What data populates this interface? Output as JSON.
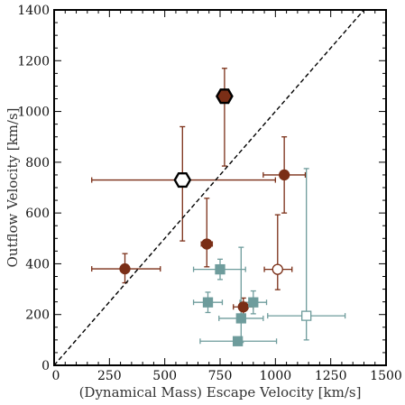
{
  "chart_data": {
    "type": "scatter",
    "title": "",
    "xlabel": "(Dynamical Mass) Escape Velocity [km/s]",
    "ylabel": "Outflow Velocity [km/s]",
    "xlim": [
      0,
      1500
    ],
    "ylim": [
      0,
      1400
    ],
    "xticks": [
      0,
      250,
      500,
      750,
      1000,
      1250,
      1500
    ],
    "yticks": [
      0,
      200,
      400,
      600,
      800,
      1000,
      1200,
      1400
    ],
    "xtick_labels": [
      "0",
      "250",
      "500",
      "750",
      "1000",
      "1250",
      "1500"
    ],
    "ytick_labels": [
      "0",
      "200",
      "400",
      "600",
      "800",
      "1000",
      "1200",
      "1400"
    ],
    "grid": false,
    "reference_line": {
      "style": "dashed",
      "color": "#000000",
      "points": [
        [
          0,
          0
        ],
        [
          1400,
          1400
        ]
      ]
    },
    "colors": {
      "brown": "#7a2e16",
      "teal": "#6e9c9c"
    },
    "series": [
      {
        "marker": "circle",
        "color": "#7a2e16",
        "points": [
          {
            "x": 320,
            "y": 380,
            "xerr": [
              150,
              160
            ],
            "yerr": [
              55,
              60
            ],
            "filled": true
          },
          {
            "x": 690,
            "y": 478,
            "xerr": [
              25,
              25
            ],
            "yerr": [
              90,
              180
            ],
            "filled": true
          },
          {
            "x": 855,
            "y": 230,
            "xerr": [
              45,
              45
            ],
            "yerr": [
              35,
              35
            ],
            "filled": true
          },
          {
            "x": 1040,
            "y": 750,
            "xerr": [
              95,
              95
            ],
            "yerr": [
              150,
              150
            ],
            "filled": true
          },
          {
            "x": 1010,
            "y": 378,
            "xerr": [
              60,
              65
            ],
            "yerr": [
              80,
              215
            ],
            "filled": false
          }
        ]
      },
      {
        "marker": "hexagon",
        "color": "#7a2e16",
        "points": [
          {
            "x": 580,
            "y": 730,
            "xerr": [
              410,
              420
            ],
            "yerr": [
              240,
              210
            ],
            "filled": false
          },
          {
            "x": 770,
            "y": 1060,
            "xerr": [
              20,
              20
            ],
            "yerr": [
              275,
              110
            ],
            "filled": true
          }
        ]
      },
      {
        "marker": "square",
        "color": "#6e9c9c",
        "points": [
          {
            "x": 750,
            "y": 378,
            "xerr": [
              120,
              115
            ],
            "yerr": [
              40,
              40
            ],
            "filled": true
          },
          {
            "x": 695,
            "y": 248,
            "xerr": [
              65,
              65
            ],
            "yerr": [
              40,
              40
            ],
            "filled": true
          },
          {
            "x": 900,
            "y": 248,
            "xerr": [
              60,
              60
            ],
            "yerr": [
              45,
              45
            ],
            "filled": true
          },
          {
            "x": 845,
            "y": 185,
            "xerr": [
              100,
              100
            ],
            "yerr": [
              95,
              280
            ],
            "filled": true
          },
          {
            "x": 830,
            "y": 95,
            "xerr": [
              170,
              175
            ],
            "yerr": [
              10,
              10
            ],
            "filled": true
          },
          {
            "x": 1140,
            "y": 195,
            "xerr": [
              175,
              175
            ],
            "yerr": [
              95,
              580
            ],
            "filled": false
          }
        ]
      }
    ]
  }
}
